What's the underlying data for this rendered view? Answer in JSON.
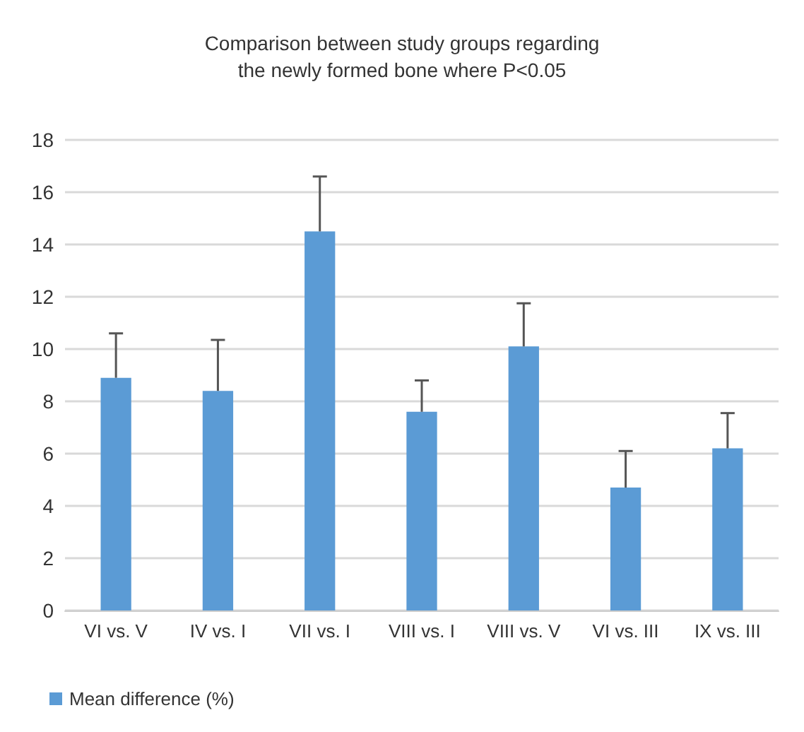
{
  "chart_data": {
    "type": "bar",
    "title": "Comparison between study groups regarding\nthe newly formed bone where P<0.05",
    "categories": [
      "VI vs. V",
      "IV vs. I",
      "VII vs. I",
      "VIII vs. I",
      "VIII vs. V",
      "VI vs. III",
      "IX vs. III"
    ],
    "series": [
      {
        "name": "Mean difference (%)",
        "color": "#5b9bd5",
        "values": [
          8.9,
          8.4,
          14.5,
          7.6,
          10.1,
          4.7,
          6.2
        ],
        "errors": [
          [
            8.9,
            10.6
          ],
          [
            8.4,
            10.35
          ],
          [
            14.5,
            16.6
          ],
          [
            7.6,
            8.8
          ],
          [
            10.1,
            11.75
          ],
          [
            4.7,
            6.1
          ],
          [
            6.2,
            7.55
          ]
        ]
      }
    ],
    "ylim": [
      0,
      18
    ],
    "yticks": [
      0,
      2,
      4,
      6,
      8,
      10,
      12,
      14,
      16,
      18
    ],
    "grid": "y",
    "legend": "bottom left"
  }
}
